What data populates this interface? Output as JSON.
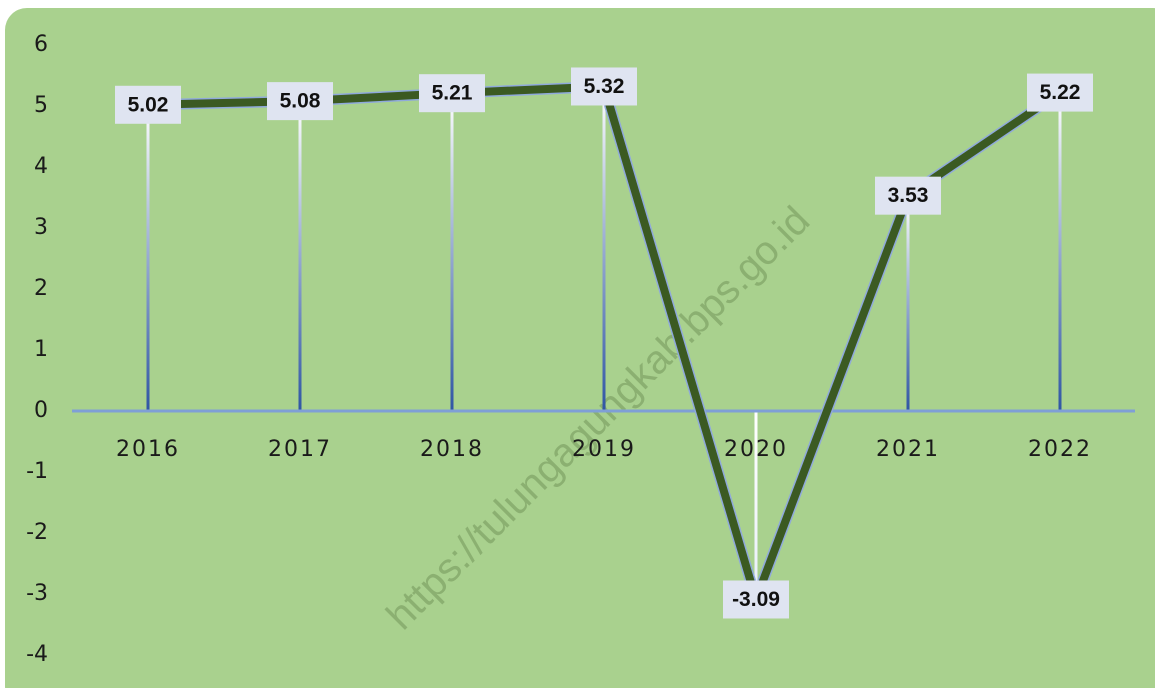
{
  "chart_data": {
    "type": "line",
    "categories": [
      "2016",
      "2017",
      "2018",
      "2019",
      "2020",
      "2021",
      "2022"
    ],
    "values": [
      5.02,
      5.08,
      5.21,
      5.32,
      -3.09,
      3.53,
      5.22
    ],
    "color": "#3b5a22",
    "ylim": [
      -4,
      6
    ],
    "yticks": [
      -4,
      -3,
      -2,
      -1,
      0,
      1,
      2,
      3,
      4,
      5,
      6
    ],
    "annotations": [
      "https://tulungagungkab.bps.go.id"
    ]
  }
}
